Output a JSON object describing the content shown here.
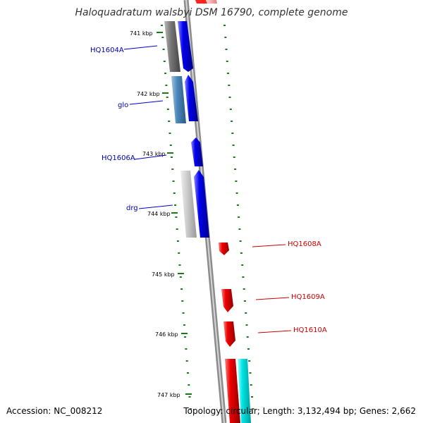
{
  "map": {
    "title": "Haloquadratum walsbyi DSM 16790, complete genome",
    "accession": "Accession: NC_008212",
    "summary": "Topology: circular; Length: 3,132,494 bp; Genes: 2,662",
    "colors": {
      "backbone": "#8c8c8c",
      "tick": "#1a7a1a",
      "forward_gene": "#0000ee",
      "reverse_gene": "#ee0000",
      "left_label": "#0000aa",
      "right_label": "#cc0000",
      "cyan_feature": "#00e5e5"
    },
    "position_ticks": [
      {
        "label": "741 kbp"
      },
      {
        "label": "742 kbp"
      },
      {
        "label": "743 kbp"
      },
      {
        "label": "744 kbp"
      },
      {
        "label": "745 kbp"
      },
      {
        "label": "746 kbp"
      },
      {
        "label": "747 kbp"
      }
    ],
    "gene_labels": [
      {
        "name": "HQ1604A",
        "side": "left"
      },
      {
        "name": "glo",
        "side": "left"
      },
      {
        "name": "HQ1606A",
        "side": "left"
      },
      {
        "name": "drg",
        "side": "left"
      },
      {
        "name": "HQ1608A",
        "side": "right"
      },
      {
        "name": "HQ1609A",
        "side": "right"
      },
      {
        "name": "HQ1610A",
        "side": "right"
      }
    ]
  }
}
